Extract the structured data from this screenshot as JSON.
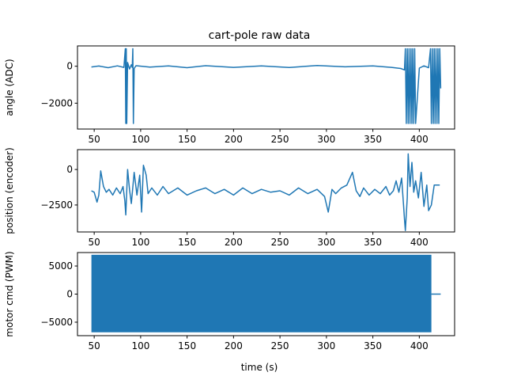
{
  "chart_data": {
    "type": "line",
    "title": "cart-pole raw data",
    "xlabel": "time (s)",
    "color": "#1f77b4",
    "grid": false,
    "legend": "none",
    "xlim": [
      32,
      438
    ],
    "xticks": [
      50,
      100,
      150,
      200,
      250,
      300,
      350,
      400
    ],
    "panels": [
      {
        "ylabel": "angle (ADC)",
        "ylim": [
          -3400,
          1100
        ],
        "yticks": [
          0,
          -2000
        ],
        "ytick_labels": [
          "0",
          "−2000"
        ],
        "series": [
          {
            "x": [
              47,
              55,
              65,
              75,
              82,
              83.5,
              84,
              84.5,
              85,
              86,
              88,
              90,
              91,
              91.6,
              92.2,
              93,
              95,
              110,
              130,
              150,
              170,
              200,
              230,
              260,
              290,
              320,
              350,
              370,
              380,
              384,
              385,
              386,
              387,
              388,
              389,
              390,
              391,
              392,
              393,
              394,
              395,
              396,
              400,
              405,
              410,
              412,
              413,
              414,
              415,
              416,
              417,
              418,
              419,
              420,
              421,
              422,
              423
            ],
            "y": [
              -40,
              10,
              -80,
              20,
              -60,
              950,
              -3100,
              950,
              -3100,
              200,
              -150,
              80,
              -60,
              950,
              -3100,
              -120,
              30,
              -50,
              20,
              -80,
              30,
              -60,
              20,
              -70,
              40,
              -30,
              20,
              -60,
              -120,
              -200,
              950,
              -3100,
              950,
              -3100,
              950,
              -3100,
              950,
              -3100,
              950,
              -3100,
              950,
              -3100,
              -100,
              20,
              -80,
              950,
              -3100,
              950,
              -3100,
              950,
              -3100,
              950,
              -3100,
              950,
              -3100,
              950,
              -1200
            ]
          }
        ]
      },
      {
        "ylabel": "position (encoder)",
        "ylim": [
          -4400,
          1400
        ],
        "yticks": [
          0,
          -2500
        ],
        "ytick_labels": [
          "0",
          "−2500"
        ],
        "series": [
          {
            "x": [
              47,
              50,
              53,
              55,
              57,
              60,
              63,
              66,
              70,
              74,
              78,
              81,
              83,
              84,
              86,
              88,
              90,
              93,
              96,
              99,
              101,
              103,
              106,
              108,
              112,
              118,
              124,
              130,
              140,
              150,
              160,
              170,
              180,
              190,
              200,
              210,
              220,
              230,
              240,
              250,
              260,
              270,
              280,
              290,
              298,
              302,
              306,
              310,
              316,
              322,
              328,
              332,
              336,
              340,
              346,
              352,
              358,
              364,
              368,
              372,
              375,
              378,
              381,
              383,
              384,
              385,
              387,
              388,
              390,
              392,
              394,
              396,
              399,
              402,
              405,
              408,
              410,
              413,
              416,
              422
            ],
            "y": [
              -1500,
              -1600,
              -2300,
              -1800,
              -100,
              -1200,
              -1600,
              -1400,
              -1800,
              -1300,
              -1700,
              -1200,
              -2200,
              -3200,
              0,
              -1400,
              -2400,
              -200,
              -1800,
              -400,
              -3000,
              300,
              -400,
              -1700,
              -1300,
              -1800,
              -1200,
              -1700,
              -1300,
              -1800,
              -1500,
              -1300,
              -1700,
              -1400,
              -1800,
              -1300,
              -1700,
              -1400,
              -1600,
              -1500,
              -1800,
              -1300,
              -1700,
              -1400,
              -1900,
              -3000,
              -1400,
              -1700,
              -1300,
              -1100,
              -200,
              -1500,
              -1900,
              -1300,
              -1800,
              -1400,
              -1700,
              -1200,
              -1800,
              -1500,
              -800,
              -1600,
              -600,
              -2500,
              -3500,
              -4300,
              -2000,
              1100,
              -1200,
              500,
              -1600,
              -800,
              -2000,
              -200,
              -2600,
              -1100,
              -2900,
              -2500,
              -1100,
              -1100
            ]
          }
        ]
      },
      {
        "ylabel": "motor cmd (PWM)",
        "ylim": [
          -7400,
          7400
        ],
        "yticks": [
          5000,
          0,
          -5000
        ],
        "ytick_labels": [
          "5000",
          "0",
          "−5000"
        ],
        "series": [
          {
            "x": [
              47,
              413
            ],
            "y_max": 7000,
            "y_min": -6800,
            "dense_switching": true
          },
          {
            "x": [
              413,
              423
            ],
            "y": [
              0,
              0
            ]
          }
        ]
      }
    ]
  }
}
